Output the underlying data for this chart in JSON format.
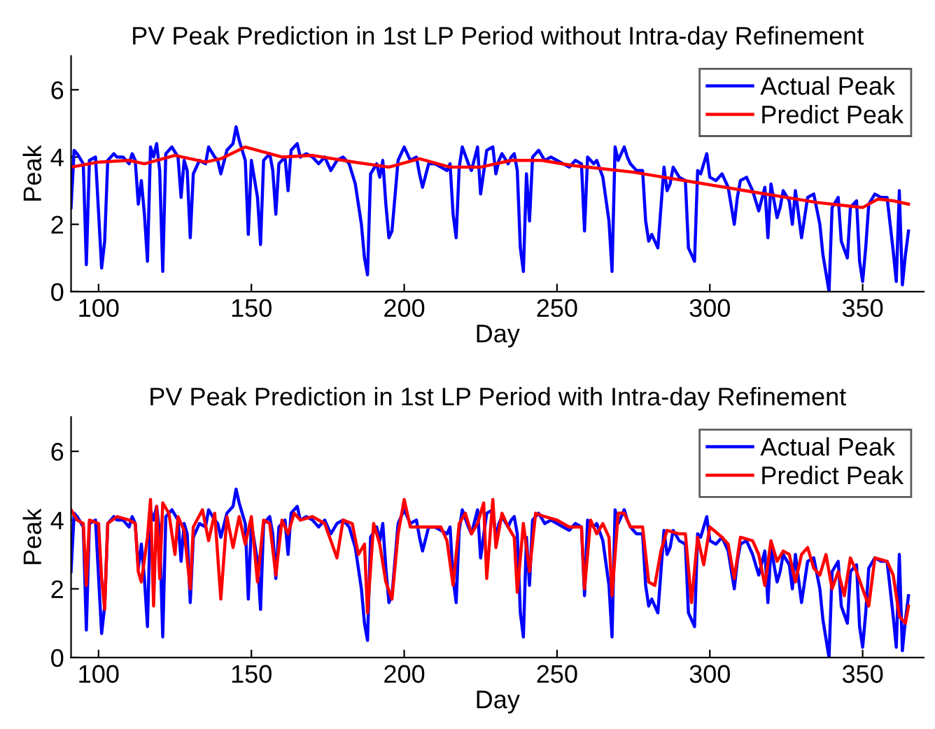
{
  "chart_data": [
    {
      "type": "line",
      "title": "PV Peak Prediction in 1st LP Period without Intra-day Refinement",
      "xlabel": "Day",
      "ylabel": "Peak",
      "xlim": [
        91,
        370
      ],
      "ylim": [
        0,
        7
      ],
      "xticks": [
        100,
        150,
        200,
        250,
        300,
        350
      ],
      "yticks": [
        0,
        2,
        4,
        6
      ],
      "grid": false,
      "legend": "top right",
      "marker": "none",
      "line_style": "solid",
      "series": [
        {
          "name": "Actual Peak",
          "color": "#0000ff",
          "x": [
            91,
            92,
            93,
            95,
            96,
            97,
            99,
            101,
            102,
            103,
            105,
            106,
            108,
            110,
            111,
            112,
            113,
            114,
            115,
            116,
            117,
            118,
            119,
            120,
            121,
            122,
            124,
            126,
            127,
            128,
            129,
            130,
            131,
            133,
            135,
            136,
            138,
            139,
            140,
            142,
            144,
            145,
            146,
            148,
            149,
            150,
            152,
            153,
            154,
            156,
            157,
            158,
            159,
            161,
            162,
            163,
            165,
            166,
            168,
            170,
            172,
            174,
            176,
            178,
            180,
            182,
            184,
            186,
            187,
            188,
            189,
            191,
            192,
            193,
            194,
            195,
            196,
            198,
            200,
            202,
            204,
            205,
            206,
            208,
            210,
            212,
            214,
            215,
            216,
            217,
            218,
            219,
            221,
            222,
            224,
            225,
            227,
            229,
            230,
            231,
            232,
            234,
            235,
            236,
            237,
            238,
            239,
            240,
            241,
            242,
            244,
            246,
            248,
            250,
            252,
            254,
            256,
            258,
            259,
            260,
            262,
            263,
            265,
            267,
            268,
            269,
            270,
            272,
            273,
            274,
            276,
            278,
            279,
            280,
            281,
            283,
            284,
            285,
            286,
            287,
            288,
            290,
            292,
            293,
            295,
            296,
            297,
            299,
            300,
            302,
            304,
            306,
            308,
            309,
            310,
            312,
            314,
            316,
            318,
            319,
            320,
            322,
            323,
            324,
            326,
            327,
            328,
            330,
            332,
            334,
            336,
            337,
            339,
            340,
            342,
            343,
            345,
            346,
            348,
            349,
            350,
            351,
            352,
            354,
            356,
            358,
            360,
            361,
            362,
            363,
            364,
            365
          ],
          "values": [
            2.5,
            4.2,
            4.1,
            3.8,
            0.8,
            3.9,
            4.0,
            0.7,
            1.5,
            3.9,
            4.1,
            4.0,
            4.0,
            3.8,
            4.1,
            3.9,
            2.6,
            3.3,
            2.3,
            0.9,
            4.3,
            4.0,
            4.4,
            3.6,
            0.6,
            4.1,
            4.3,
            4.0,
            2.8,
            3.9,
            3.6,
            1.6,
            3.5,
            3.9,
            3.8,
            4.3,
            4.0,
            3.9,
            3.5,
            4.2,
            4.4,
            4.9,
            4.5,
            3.9,
            1.7,
            3.9,
            2.8,
            1.4,
            3.9,
            4.1,
            3.6,
            2.3,
            3.8,
            4.0,
            3.0,
            4.2,
            4.4,
            4.0,
            4.1,
            4.0,
            3.8,
            4.0,
            3.6,
            3.9,
            4.0,
            3.8,
            3.2,
            2.0,
            1.0,
            0.5,
            3.5,
            3.8,
            3.4,
            3.9,
            2.6,
            1.6,
            1.8,
            3.9,
            4.3,
            3.9,
            4.0,
            3.5,
            3.1,
            3.8,
            3.8,
            3.7,
            3.6,
            3.8,
            2.3,
            1.6,
            3.7,
            4.3,
            3.8,
            3.6,
            4.3,
            2.9,
            4.2,
            4.3,
            3.5,
            3.9,
            4.1,
            3.8,
            4.0,
            4.1,
            3.6,
            1.3,
            0.6,
            3.5,
            2.1,
            4.0,
            4.2,
            3.9,
            4.0,
            3.9,
            3.8,
            3.7,
            3.9,
            3.8,
            1.8,
            4.0,
            3.8,
            3.9,
            3.4,
            2.1,
            0.6,
            4.3,
            3.9,
            4.3,
            4.0,
            3.8,
            3.6,
            3.6,
            2.1,
            1.5,
            1.7,
            1.3,
            2.5,
            3.7,
            3.0,
            3.2,
            3.7,
            3.4,
            3.3,
            1.3,
            0.9,
            3.6,
            3.5,
            4.1,
            3.4,
            3.3,
            3.5,
            3.1,
            2.0,
            2.8,
            3.3,
            3.4,
            3.0,
            2.4,
            3.1,
            1.6,
            3.2,
            2.2,
            2.5,
            3.0,
            2.7,
            2.0,
            3.0,
            1.6,
            2.8,
            2.9,
            2.0,
            1.1,
            0.0,
            2.5,
            2.8,
            1.5,
            1.0,
            2.5,
            2.7,
            0.9,
            0.3,
            1.3,
            2.6,
            2.9,
            2.8,
            2.8,
            1.2,
            0.3,
            3.0,
            0.2,
            1.1,
            1.8
          ]
        },
        {
          "name": "Predict Peak",
          "color": "#ff0000",
          "x": [
            91,
            100,
            110,
            115,
            125,
            135,
            140,
            148,
            160,
            170,
            180,
            195,
            205,
            215,
            225,
            235,
            245,
            255,
            265,
            275,
            285,
            295,
            305,
            315,
            325,
            335,
            345,
            350,
            355,
            360,
            365
          ],
          "values": [
            3.7,
            3.85,
            3.9,
            3.8,
            4.05,
            3.85,
            3.95,
            4.3,
            4.0,
            4.05,
            3.9,
            3.7,
            3.95,
            3.7,
            3.7,
            3.9,
            3.9,
            3.75,
            3.65,
            3.55,
            3.4,
            3.25,
            3.1,
            2.95,
            2.8,
            2.65,
            2.55,
            2.5,
            2.75,
            2.7,
            2.6
          ]
        }
      ]
    },
    {
      "type": "line",
      "title": "PV Peak Prediction in 1st LP Period with Intra-day Refinement",
      "xlabel": "Day",
      "ylabel": "Peak",
      "xlim": [
        91,
        370
      ],
      "ylim": [
        0,
        7
      ],
      "xticks": [
        100,
        150,
        200,
        250,
        300,
        350
      ],
      "yticks": [
        0,
        2,
        4,
        6
      ],
      "grid": false,
      "legend": "top right",
      "marker": "none",
      "line_style": "solid",
      "series": [
        {
          "name": "Actual Peak",
          "color": "#0000ff",
          "x": [
            91,
            92,
            93,
            95,
            96,
            97,
            99,
            101,
            102,
            103,
            105,
            106,
            108,
            110,
            111,
            112,
            113,
            114,
            115,
            116,
            117,
            118,
            119,
            120,
            121,
            122,
            124,
            126,
            127,
            128,
            129,
            130,
            131,
            133,
            135,
            136,
            138,
            139,
            140,
            142,
            144,
            145,
            146,
            148,
            149,
            150,
            152,
            153,
            154,
            156,
            157,
            158,
            159,
            161,
            162,
            163,
            165,
            166,
            168,
            170,
            172,
            174,
            176,
            178,
            180,
            182,
            184,
            186,
            187,
            188,
            189,
            191,
            192,
            193,
            194,
            195,
            196,
            198,
            200,
            202,
            204,
            205,
            206,
            208,
            210,
            212,
            214,
            215,
            216,
            217,
            218,
            219,
            221,
            222,
            224,
            225,
            227,
            229,
            230,
            231,
            232,
            234,
            235,
            236,
            237,
            238,
            239,
            240,
            241,
            242,
            244,
            246,
            248,
            250,
            252,
            254,
            256,
            258,
            259,
            260,
            262,
            263,
            265,
            267,
            268,
            269,
            270,
            272,
            273,
            274,
            276,
            278,
            279,
            280,
            281,
            283,
            284,
            285,
            286,
            287,
            288,
            290,
            292,
            293,
            295,
            296,
            297,
            299,
            300,
            302,
            304,
            306,
            308,
            309,
            310,
            312,
            314,
            316,
            318,
            319,
            320,
            322,
            323,
            324,
            326,
            327,
            328,
            330,
            332,
            334,
            336,
            337,
            339,
            340,
            342,
            343,
            345,
            346,
            348,
            349,
            350,
            351,
            352,
            354,
            356,
            358,
            360,
            361,
            362,
            363,
            364,
            365
          ],
          "values": [
            2.5,
            4.2,
            4.1,
            3.8,
            0.8,
            3.9,
            4.0,
            0.7,
            1.5,
            3.9,
            4.1,
            4.0,
            4.0,
            3.8,
            4.1,
            3.9,
            2.6,
            3.3,
            2.3,
            0.9,
            4.3,
            4.0,
            4.4,
            3.6,
            0.6,
            4.1,
            4.3,
            4.0,
            2.8,
            3.9,
            3.6,
            1.6,
            3.5,
            3.9,
            3.8,
            4.3,
            4.0,
            3.9,
            3.5,
            4.2,
            4.4,
            4.9,
            4.5,
            3.9,
            1.7,
            3.9,
            2.8,
            1.4,
            3.9,
            4.1,
            3.6,
            2.3,
            3.8,
            4.0,
            3.0,
            4.2,
            4.4,
            4.0,
            4.1,
            4.0,
            3.8,
            4.0,
            3.6,
            3.9,
            4.0,
            3.8,
            3.2,
            2.0,
            1.0,
            0.5,
            3.5,
            3.8,
            3.4,
            3.9,
            2.6,
            1.6,
            1.8,
            3.9,
            4.3,
            3.9,
            4.0,
            3.5,
            3.1,
            3.8,
            3.8,
            3.7,
            3.6,
            3.8,
            2.3,
            1.6,
            3.7,
            4.3,
            3.8,
            3.6,
            4.3,
            2.9,
            4.2,
            4.3,
            3.5,
            3.9,
            4.1,
            3.8,
            4.0,
            4.1,
            3.6,
            1.3,
            0.6,
            3.5,
            2.1,
            4.0,
            4.2,
            3.9,
            4.0,
            3.9,
            3.8,
            3.7,
            3.9,
            3.8,
            1.8,
            4.0,
            3.8,
            3.9,
            3.4,
            2.1,
            0.6,
            4.3,
            3.9,
            4.3,
            4.0,
            3.8,
            3.6,
            3.6,
            2.1,
            1.5,
            1.7,
            1.3,
            2.5,
            3.7,
            3.0,
            3.2,
            3.7,
            3.4,
            3.3,
            1.3,
            0.9,
            3.6,
            3.5,
            4.1,
            3.4,
            3.3,
            3.5,
            3.1,
            2.0,
            2.8,
            3.3,
            3.4,
            3.0,
            2.4,
            3.1,
            1.6,
            3.2,
            2.2,
            2.5,
            3.0,
            2.7,
            2.0,
            3.0,
            1.6,
            2.8,
            2.9,
            2.0,
            1.1,
            0.0,
            2.5,
            2.8,
            1.5,
            1.0,
            2.5,
            2.7,
            0.9,
            0.3,
            1.3,
            2.6,
            2.9,
            2.8,
            2.8,
            1.2,
            0.3,
            3.0,
            0.2,
            1.1,
            1.8
          ]
        },
        {
          "name": "Predict Peak",
          "color": "#ff0000",
          "x": [
            91,
            93,
            95,
            96,
            97,
            100,
            101,
            102,
            103,
            106,
            110,
            112,
            113,
            114,
            116,
            117,
            118,
            119,
            120,
            121,
            123,
            125,
            126,
            128,
            130,
            131,
            134,
            136,
            138,
            140,
            142,
            144,
            146,
            148,
            150,
            152,
            154,
            156,
            158,
            160,
            162,
            164,
            166,
            170,
            174,
            176,
            178,
            180,
            183,
            185,
            187,
            188,
            190,
            192,
            194,
            196,
            198,
            200,
            202,
            206,
            210,
            212,
            214,
            216,
            218,
            220,
            222,
            224,
            226,
            227,
            229,
            230,
            232,
            234,
            236,
            237,
            239,
            241,
            243,
            246,
            250,
            254,
            258,
            259,
            261,
            263,
            265,
            267,
            268,
            270,
            272,
            274,
            276,
            278,
            280,
            282,
            284,
            286,
            290,
            292,
            294,
            296,
            298,
            300,
            304,
            306,
            308,
            310,
            314,
            316,
            318,
            320,
            322,
            324,
            326,
            328,
            330,
            332,
            334,
            336,
            338,
            340,
            342,
            344,
            346,
            348,
            350,
            352,
            354,
            358,
            360,
            362,
            364,
            365
          ],
          "values": [
            4.3,
            4.0,
            3.9,
            2.1,
            4.0,
            3.9,
            2.3,
            1.4,
            3.9,
            4.1,
            4.0,
            3.9,
            2.5,
            2.2,
            3.5,
            4.6,
            1.5,
            4.4,
            2.3,
            4.5,
            4.2,
            3.0,
            4.1,
            3.7,
            2.0,
            3.8,
            4.3,
            3.4,
            4.2,
            1.7,
            4.1,
            3.2,
            4.1,
            3.3,
            4.1,
            2.2,
            4.0,
            3.9,
            2.4,
            4.0,
            3.6,
            4.2,
            4.0,
            4.1,
            3.9,
            3.4,
            2.9,
            4.0,
            3.9,
            3.0,
            3.3,
            1.3,
            3.9,
            3.3,
            2.2,
            1.7,
            3.6,
            4.6,
            3.8,
            3.8,
            3.8,
            3.8,
            3.4,
            2.1,
            3.9,
            4.2,
            3.6,
            3.9,
            4.5,
            2.3,
            4.6,
            3.2,
            4.2,
            3.8,
            3.5,
            1.9,
            3.9,
            2.5,
            4.2,
            4.1,
            4.0,
            3.8,
            3.8,
            2.0,
            4.0,
            3.6,
            3.9,
            3.5,
            1.8,
            4.2,
            4.2,
            3.8,
            3.8,
            3.8,
            2.2,
            2.1,
            3.1,
            3.7,
            3.6,
            3.6,
            1.6,
            3.5,
            2.7,
            3.8,
            3.5,
            3.3,
            2.3,
            3.5,
            3.4,
            3.0,
            2.1,
            3.4,
            2.8,
            3.1,
            3.0,
            2.2,
            3.0,
            3.2,
            2.6,
            2.4,
            3.0,
            2.0,
            2.5,
            1.8,
            2.9,
            2.5,
            2.0,
            1.5,
            2.9,
            2.8,
            2.4,
            1.2,
            1.0,
            1.5
          ]
        }
      ]
    }
  ]
}
